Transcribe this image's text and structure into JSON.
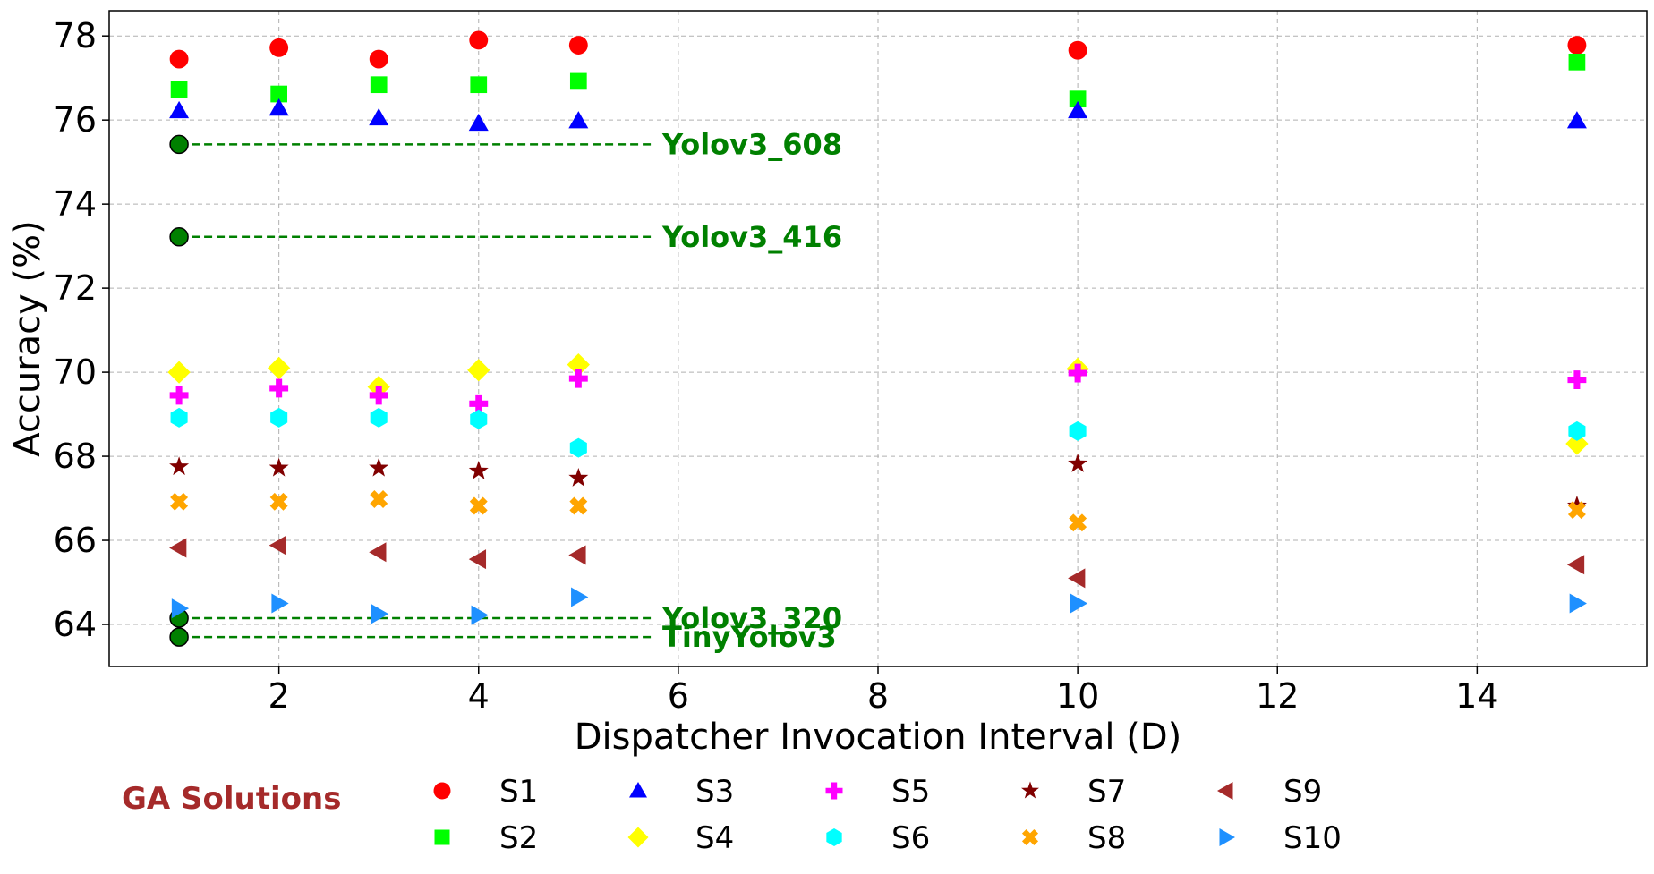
{
  "chart_data": {
    "type": "scatter",
    "xlabel": "Dispatcher Invocation Interval (D)",
    "ylabel": "Accuracy (%)",
    "xlim": [
      0.3,
      15.7
    ],
    "ylim": [
      63.0,
      78.6
    ],
    "xticks": [
      2,
      4,
      6,
      8,
      10,
      12,
      14
    ],
    "yticks": [
      64,
      66,
      68,
      70,
      72,
      74,
      76,
      78
    ],
    "grid": true,
    "legend_title": "GA Solutions",
    "legend_title_color": "#a52a2a",
    "legend_position": "bottom",
    "x": [
      1,
      2,
      3,
      4,
      5,
      10,
      15
    ],
    "series": [
      {
        "name": "S1",
        "marker": "circle",
        "color": "#ff0000",
        "values": [
          77.45,
          77.72,
          77.45,
          77.9,
          77.78,
          77.66,
          77.78
        ]
      },
      {
        "name": "S2",
        "marker": "square",
        "color": "#00ff00",
        "values": [
          76.72,
          76.62,
          76.84,
          76.84,
          76.92,
          76.5,
          77.38
        ]
      },
      {
        "name": "S3",
        "marker": "triangle-up",
        "color": "#0000ff",
        "values": [
          76.22,
          76.28,
          76.05,
          75.92,
          75.98,
          76.22,
          75.98
        ]
      },
      {
        "name": "S4",
        "marker": "diamond",
        "color": "#ffff00",
        "values": [
          70.0,
          70.1,
          69.65,
          70.05,
          70.18,
          70.08,
          68.3
        ]
      },
      {
        "name": "S5",
        "marker": "plus",
        "color": "#ff00ff",
        "values": [
          69.45,
          69.62,
          69.45,
          69.25,
          69.85,
          69.98,
          69.82
        ]
      },
      {
        "name": "S6",
        "marker": "hexagon",
        "color": "#00ffff",
        "values": [
          68.92,
          68.92,
          68.92,
          68.88,
          68.2,
          68.6,
          68.6
        ]
      },
      {
        "name": "S7",
        "marker": "star",
        "color": "#800000",
        "values": [
          67.75,
          67.72,
          67.72,
          67.65,
          67.48,
          67.82,
          66.82
        ]
      },
      {
        "name": "S8",
        "marker": "x",
        "color": "#ffa500",
        "values": [
          66.92,
          66.92,
          66.98,
          66.82,
          66.82,
          66.42,
          66.72
        ]
      },
      {
        "name": "S9",
        "marker": "triangle-left",
        "color": "#a52a2a",
        "values": [
          65.82,
          65.88,
          65.72,
          65.55,
          65.65,
          65.1,
          65.42
        ]
      },
      {
        "name": "S10",
        "marker": "triangle-right",
        "color": "#1e90ff",
        "values": [
          64.38,
          64.5,
          64.25,
          64.22,
          64.65,
          64.5,
          64.5
        ]
      }
    ],
    "reference_lines": [
      {
        "label": "Yolov3_608",
        "x": [
          1,
          5.75
        ],
        "y": 75.42,
        "color": "#008000"
      },
      {
        "label": "Yolov3_416",
        "x": [
          1,
          5.75
        ],
        "y": 73.22,
        "color": "#008000"
      },
      {
        "label": "Yolov3_320",
        "x": [
          1,
          5.75
        ],
        "y": 64.15,
        "color": "#008000"
      },
      {
        "label": "TinyYolov3",
        "x": [
          1,
          5.75
        ],
        "y": 63.7,
        "color": "#008000"
      }
    ]
  }
}
